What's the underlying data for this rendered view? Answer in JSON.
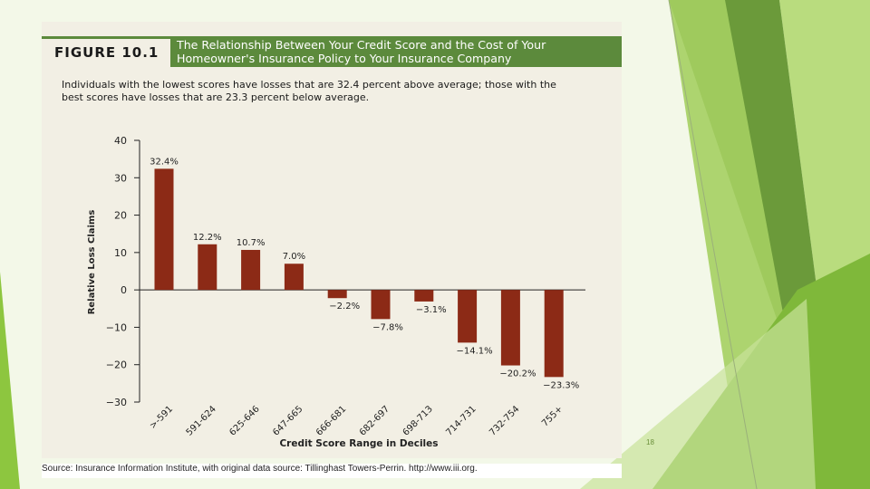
{
  "figure": {
    "label": "FIGURE 10.1",
    "title_line1": "The Relationship Between Your Credit Score and the Cost of Your",
    "title_line2": "Homeowner's Insurance Policy to Your Insurance Company",
    "subtitle_line1": "Individuals with the lowest scores have losses that are 32.4 percent above average; those with the",
    "subtitle_line2": "best scores have losses that are 23.3 percent below average.",
    "source": "Source: Insurance Information Institute, with original data source: Tillinghast Towers-Perrin. http://www.iii.org."
  },
  "slide_number": "18",
  "colors": {
    "bar": "#8c2a16",
    "header": "#5c8a3c",
    "panel": "#f2efe4",
    "accent_green": "#8dc63f"
  },
  "chart_data": {
    "type": "bar",
    "categories": [
      ">-591",
      "591-624",
      "625-646",
      "647-665",
      "666-681",
      "682-697",
      "698-713",
      "714-731",
      "732-754",
      "755+"
    ],
    "values": [
      32.4,
      12.2,
      10.7,
      7.0,
      -2.2,
      -7.8,
      -3.1,
      -14.1,
      -20.2,
      -23.3
    ],
    "data_labels": [
      "32.4%",
      "12.2%",
      "10.7%",
      "7.0%",
      "−2.2%",
      "−7.8%",
      "−3.1%",
      "−14.1%",
      "−20.2%",
      "−23.3%"
    ],
    "yticks": [
      40,
      30,
      20,
      10,
      0,
      -10,
      -20,
      -30
    ],
    "ytick_labels": [
      "40",
      "30",
      "20",
      "10",
      "0",
      "−10",
      "−20",
      "−30"
    ],
    "ylim": [
      -30,
      40
    ],
    "xlabel": "Credit Score Range in Deciles",
    "ylabel": "Relative Loss Claims",
    "grid": false
  }
}
